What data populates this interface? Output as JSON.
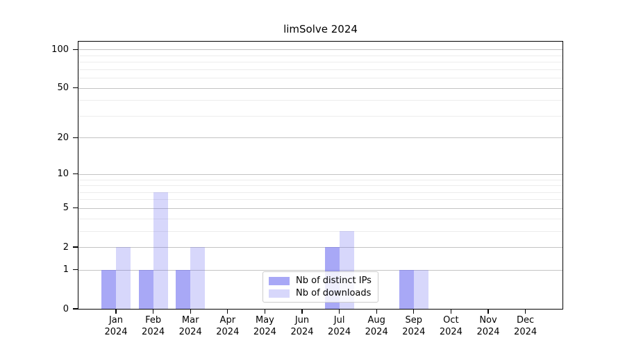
{
  "figure": {
    "title": "limSolve 2024",
    "background": "#ffffff"
  },
  "chart_data": {
    "type": "bar",
    "title": "limSolve 2024",
    "categories": [
      "Jan 2024",
      "Feb 2024",
      "Mar 2024",
      "Apr 2024",
      "May 2024",
      "Jun 2024",
      "Jul 2024",
      "Aug 2024",
      "Sep 2024",
      "Oct 2024",
      "Nov 2024",
      "Dec 2024"
    ],
    "series": [
      {
        "name": "Nb of distinct IPs",
        "color": "rgba(110,110,240,0.60)",
        "values": [
          1,
          1,
          1,
          0,
          0,
          0,
          2,
          0,
          1,
          0,
          0,
          0
        ]
      },
      {
        "name": "Nb of downloads",
        "color": "rgba(110,110,240,0.28)",
        "values": [
          2,
          7,
          2,
          0,
          0,
          0,
          3,
          0,
          1,
          0,
          0,
          0
        ]
      }
    ],
    "xlabel": "",
    "ylabel": "",
    "yscale": "log1p",
    "ylim": [
      0,
      115
    ],
    "yticks": [
      0,
      1,
      2,
      5,
      10,
      20,
      50,
      100
    ],
    "minor_yticks": [
      3,
      4,
      6,
      7,
      8,
      9,
      30,
      40,
      60,
      70,
      80,
      90
    ],
    "grid": true,
    "legend_position": "lower-center-inside",
    "colors": {
      "major_grid": "#c3c3c3",
      "minor_grid": "#ececec",
      "axis": "#000000",
      "text": "#000000"
    }
  }
}
